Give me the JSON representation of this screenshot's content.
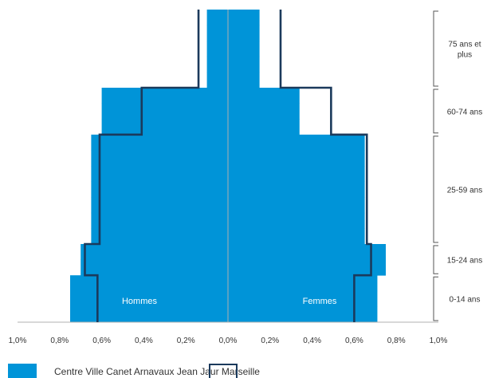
{
  "chart_data": {
    "type": "bar",
    "orientation": "horizontal-pyramid",
    "xlim": [
      -1.0,
      1.0
    ],
    "x_ticks": [
      "1,0%",
      "0,8%",
      "0,6%",
      "0,4%",
      "0,2%",
      "0,0%",
      "0,2%",
      "0,4%",
      "0,6%",
      "0,8%",
      "1,0%"
    ],
    "ages_bottom_to_top": [
      "0",
      "5",
      "10",
      "15",
      "20",
      "25",
      "30",
      "35",
      "40",
      "45",
      "50",
      "55",
      "60",
      "65",
      "70",
      "75",
      "80",
      "85",
      "90",
      "95"
    ],
    "age_groups": [
      {
        "label": "0-14 ans",
        "from": 0,
        "to": 15
      },
      {
        "label": "15-24 ans",
        "from": 15,
        "to": 25
      },
      {
        "label": "25-59 ans",
        "from": 25,
        "to": 60
      },
      {
        "label": "60-74 ans",
        "from": 60,
        "to": 75
      },
      {
        "label": "75 ans et plus",
        "from": 75,
        "to": 100
      }
    ],
    "side_labels": {
      "left": "Hommes",
      "right": "Femmes"
    },
    "series": [
      {
        "name": "Centre Ville Canet Arnavaux Jean Jaur",
        "kind": "bars",
        "color": "#0094d8",
        "men": [
          0.75,
          0.75,
          0.75,
          0.7,
          0.7,
          0.65,
          0.65,
          0.65,
          0.65,
          0.65,
          0.65,
          0.65,
          0.6,
          0.6,
          0.6,
          0.1,
          0.1,
          0.1,
          0.1,
          0.1
        ],
        "women": [
          0.71,
          0.71,
          0.71,
          0.75,
          0.75,
          0.65,
          0.65,
          0.65,
          0.65,
          0.65,
          0.65,
          0.65,
          0.34,
          0.34,
          0.34,
          0.15,
          0.15,
          0.15,
          0.15,
          0.15
        ]
      },
      {
        "name": "Marseille",
        "kind": "outline",
        "color": "#1b3a5c",
        "men": [
          0.62,
          0.62,
          0.62,
          0.68,
          0.68,
          0.61,
          0.61,
          0.61,
          0.61,
          0.61,
          0.61,
          0.61,
          0.41,
          0.41,
          0.41,
          0.14,
          0.14,
          0.14,
          0.14,
          0.14
        ],
        "women": [
          0.6,
          0.6,
          0.6,
          0.68,
          0.68,
          0.66,
          0.66,
          0.66,
          0.66,
          0.66,
          0.66,
          0.66,
          0.49,
          0.49,
          0.49,
          0.25,
          0.25,
          0.25,
          0.25,
          0.25
        ]
      }
    ],
    "legend": {
      "placement": "bottom",
      "text": "Centre Ville Canet Arnavaux Jean Jaur Marseille"
    }
  }
}
